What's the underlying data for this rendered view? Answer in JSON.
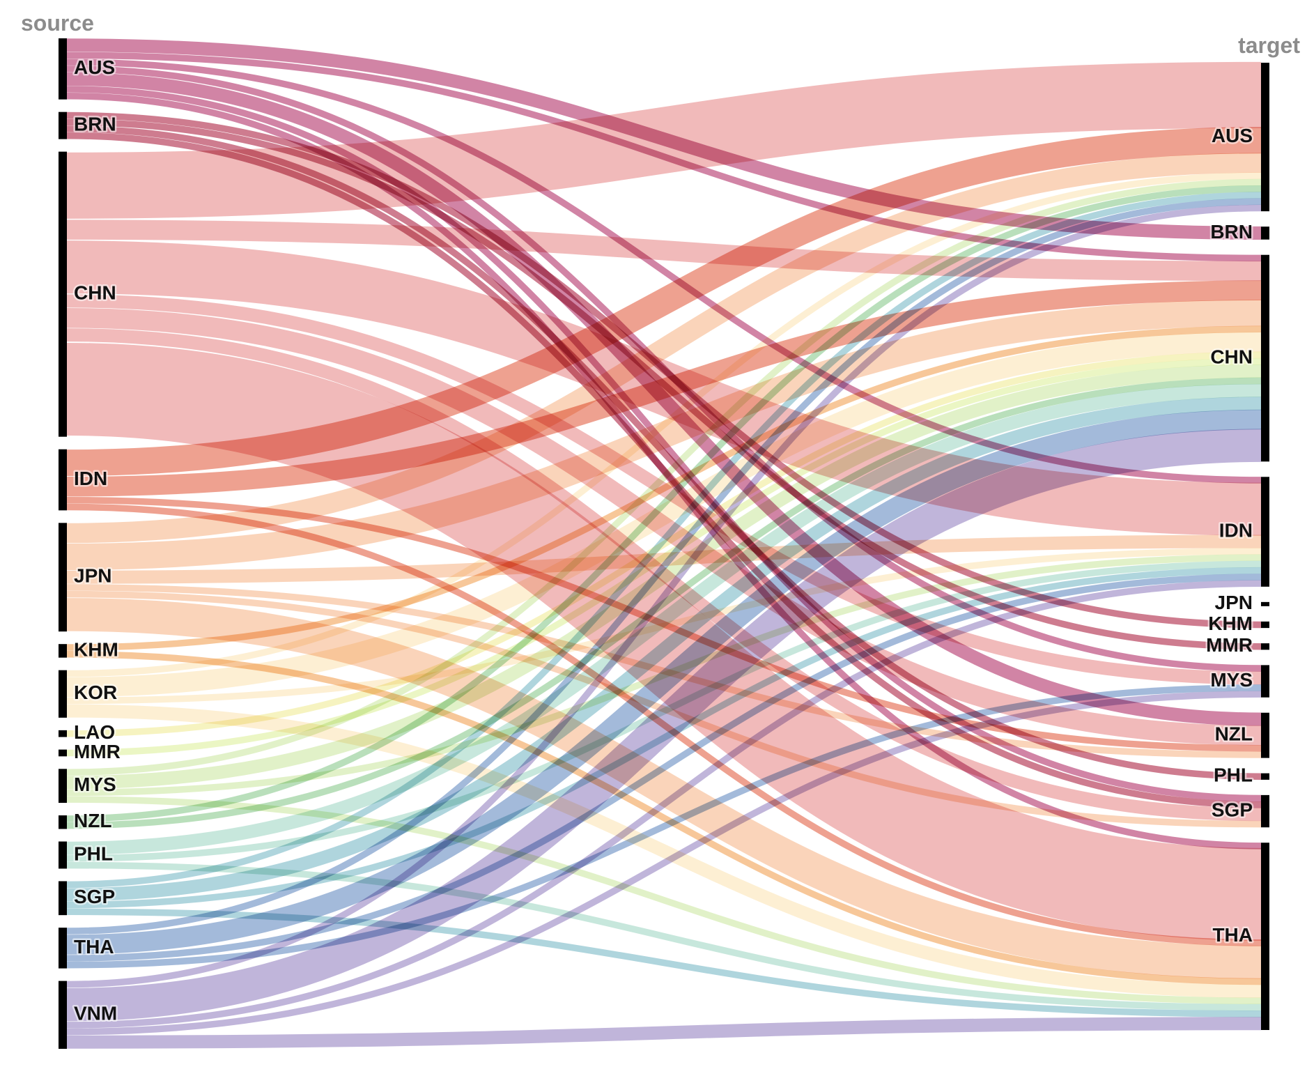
{
  "chart_data": {
    "type": "sankey",
    "source_title": "source",
    "target_title": "target",
    "source_nodes": [
      "AUS",
      "BRN",
      "CHN",
      "IDN",
      "JPN",
      "KHM",
      "KOR",
      "LAO",
      "MMR",
      "MYS",
      "NZL",
      "PHL",
      "SGP",
      "THA",
      "VNM"
    ],
    "target_nodes": [
      "AUS",
      "BRN",
      "CHN",
      "IDN",
      "JPN",
      "KHM",
      "MMR",
      "MYS",
      "NZL",
      "PHL",
      "SGP",
      "THA"
    ],
    "source_colors": {
      "AUS": "#b5386e",
      "BRN": "#b02b4a",
      "CHN": "#e9908f",
      "IDN": "#e4684c",
      "JPN": "#f7b98f",
      "KHM": "#f2a45b",
      "KOR": "#fbe5b8",
      "LAO": "#f1ec9a",
      "MMR": "#dff0a0",
      "MYS": "#cfe8a6",
      "NZL": "#8ecb92",
      "PHL": "#a5d8c6",
      "SGP": "#7ebcc8",
      "THA": "#6b8fc4",
      "VNM": "#9a88c4"
    },
    "flows": [
      {
        "source": "AUS",
        "target": "BRN",
        "value": 2
      },
      {
        "source": "AUS",
        "target": "CHN",
        "value": 1
      },
      {
        "source": "AUS",
        "target": "IDN",
        "value": 1
      },
      {
        "source": "AUS",
        "target": "NZL",
        "value": 2
      },
      {
        "source": "AUS",
        "target": "THA",
        "value": 1
      },
      {
        "source": "AUS",
        "target": "SGP",
        "value": 1
      },
      {
        "source": "AUS",
        "target": "MYS",
        "value": 1
      },
      {
        "source": "BRN",
        "target": "KHM",
        "value": 1
      },
      {
        "source": "BRN",
        "target": "PHL",
        "value": 1
      },
      {
        "source": "BRN",
        "target": "MMR",
        "value": 1
      },
      {
        "source": "BRN",
        "target": "SGP",
        "value": 1
      },
      {
        "source": "CHN",
        "target": "AUS",
        "value": 10
      },
      {
        "source": "CHN",
        "target": "IDN",
        "value": 8
      },
      {
        "source": "CHN",
        "target": "THA",
        "value": 14
      },
      {
        "source": "CHN",
        "target": "NZL",
        "value": 3
      },
      {
        "source": "CHN",
        "target": "MYS",
        "value": 2
      },
      {
        "source": "CHN",
        "target": "SGP",
        "value": 2
      },
      {
        "source": "CHN",
        "target": "CHN",
        "value": 3
      },
      {
        "source": "IDN",
        "target": "AUS",
        "value": 4
      },
      {
        "source": "IDN",
        "target": "CHN",
        "value": 3
      },
      {
        "source": "IDN",
        "target": "THA",
        "value": 1
      },
      {
        "source": "IDN",
        "target": "NZL",
        "value": 1
      },
      {
        "source": "JPN",
        "target": "AUS",
        "value": 3
      },
      {
        "source": "JPN",
        "target": "CHN",
        "value": 4
      },
      {
        "source": "JPN",
        "target": "THA",
        "value": 5
      },
      {
        "source": "JPN",
        "target": "IDN",
        "value": 2
      },
      {
        "source": "JPN",
        "target": "NZL",
        "value": 1
      },
      {
        "source": "JPN",
        "target": "SGP",
        "value": 1
      },
      {
        "source": "KHM",
        "target": "THA",
        "value": 1
      },
      {
        "source": "KHM",
        "target": "CHN",
        "value": 1
      },
      {
        "source": "KOR",
        "target": "CHN",
        "value": 3
      },
      {
        "source": "KOR",
        "target": "THA",
        "value": 2
      },
      {
        "source": "KOR",
        "target": "AUS",
        "value": 1
      },
      {
        "source": "KOR",
        "target": "IDN",
        "value": 1
      },
      {
        "source": "LAO",
        "target": "CHN",
        "value": 1
      },
      {
        "source": "MMR",
        "target": "CHN",
        "value": 1
      },
      {
        "source": "MYS",
        "target": "CHN",
        "value": 2
      },
      {
        "source": "MYS",
        "target": "THA",
        "value": 1
      },
      {
        "source": "MYS",
        "target": "AUS",
        "value": 1
      },
      {
        "source": "MYS",
        "target": "IDN",
        "value": 1
      },
      {
        "source": "NZL",
        "target": "AUS",
        "value": 1
      },
      {
        "source": "NZL",
        "target": "CHN",
        "value": 1
      },
      {
        "source": "PHL",
        "target": "CHN",
        "value": 2
      },
      {
        "source": "PHL",
        "target": "THA",
        "value": 1
      },
      {
        "source": "PHL",
        "target": "IDN",
        "value": 1
      },
      {
        "source": "SGP",
        "target": "CHN",
        "value": 2
      },
      {
        "source": "SGP",
        "target": "AUS",
        "value": 1
      },
      {
        "source": "SGP",
        "target": "IDN",
        "value": 1
      },
      {
        "source": "SGP",
        "target": "THA",
        "value": 1
      },
      {
        "source": "THA",
        "target": "CHN",
        "value": 3
      },
      {
        "source": "THA",
        "target": "AUS",
        "value": 1
      },
      {
        "source": "THA",
        "target": "IDN",
        "value": 1
      },
      {
        "source": "THA",
        "target": "MYS",
        "value": 1
      },
      {
        "source": "VNM",
        "target": "CHN",
        "value": 5
      },
      {
        "source": "VNM",
        "target": "AUS",
        "value": 1
      },
      {
        "source": "VNM",
        "target": "THA",
        "value": 2
      },
      {
        "source": "VNM",
        "target": "IDN",
        "value": 1
      },
      {
        "source": "VNM",
        "target": "MYS",
        "value": 1
      }
    ]
  }
}
